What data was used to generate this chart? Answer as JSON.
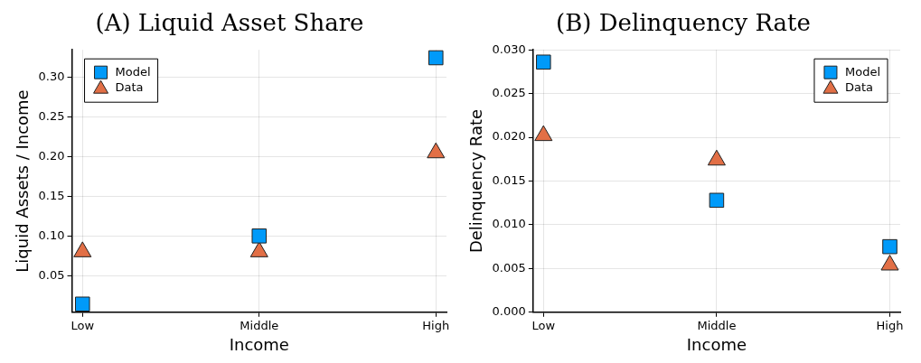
{
  "chart_data": [
    {
      "type": "scatter",
      "title": "(A) Liquid Asset Share",
      "xlabel": "Income",
      "ylabel": "Liquid Assets / Income",
      "categories": [
        "Low",
        "Middle",
        "High"
      ],
      "ylim": [
        0.0037,
        0.335
      ],
      "yticks": [
        0.05,
        {
          "value": 0.1,
          "label": "0.10"
        },
        0.15,
        {
          "value": 0.2,
          "label": "0.20"
        },
        0.25,
        {
          "value": 0.3,
          "label": "0.30"
        }
      ],
      "grid": true,
      "legend": "top left",
      "series": [
        {
          "name": "Model",
          "color": "#009af9",
          "marker": "square",
          "values": [
            0.014,
            0.1,
            0.325
          ]
        },
        {
          "name": "Data",
          "color": "#e26f46",
          "marker": "triangle",
          "values": [
            0.08,
            0.08,
            0.205
          ]
        }
      ]
    },
    {
      "type": "scatter",
      "title": "(B) Delinquency Rate",
      "xlabel": "Income",
      "ylabel": "Delinquency Rate",
      "categories": [
        "Low",
        "Middle",
        "High"
      ],
      "ylim": [
        0,
        0.03
      ],
      "yticks": [
        {
          "value": 0,
          "label": "0.000"
        },
        0.005,
        {
          "value": 0.01,
          "label": "0.010"
        },
        0.015,
        {
          "value": 0.02,
          "label": "0.020"
        },
        0.025,
        {
          "value": 0.03,
          "label": "0.030"
        }
      ],
      "grid": true,
      "legend": "top right",
      "series": [
        {
          "name": "Model",
          "color": "#009af9",
          "marker": "square",
          "values": [
            0.0286,
            0.0128,
            0.0075
          ]
        },
        {
          "name": "Data",
          "color": "#e26f46",
          "marker": "triangle",
          "values": [
            0.0202,
            0.0174,
            0.0054
          ]
        }
      ]
    }
  ]
}
